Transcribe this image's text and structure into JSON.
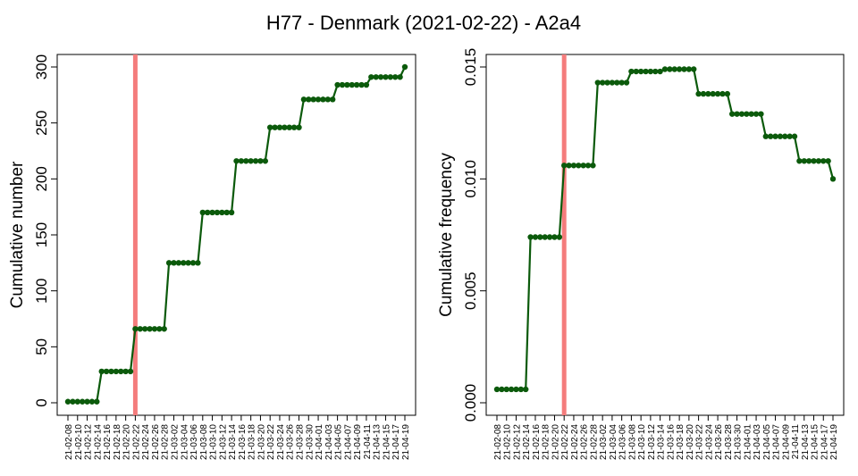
{
  "title": "H77 - Denmark (2021-02-22) - A2a4",
  "colors": {
    "line": "#0b5a0b",
    "marker": "#0b5a0b",
    "vline": "#f47c7c",
    "axis": "#000000"
  },
  "chart_data": [
    {
      "type": "line",
      "ylabel": "Cumulative number",
      "xlabel": "",
      "ylim": [
        0,
        300
      ],
      "yticks": [
        0,
        50,
        100,
        150,
        200,
        250,
        300
      ],
      "ytick_labels": [
        "0",
        "50",
        "100",
        "150",
        "200",
        "250",
        "300"
      ],
      "x": [
        "21-02-08",
        "21-02-09",
        "21-02-10",
        "21-02-11",
        "21-02-12",
        "21-02-13",
        "21-02-14",
        "21-02-15",
        "21-02-16",
        "21-02-17",
        "21-02-18",
        "21-02-19",
        "21-02-20",
        "21-02-21",
        "21-02-22",
        "21-02-23",
        "21-02-24",
        "21-02-25",
        "21-02-26",
        "21-02-27",
        "21-02-28",
        "21-03-01",
        "21-03-02",
        "21-03-03",
        "21-03-04",
        "21-03-05",
        "21-03-06",
        "21-03-07",
        "21-03-08",
        "21-03-09",
        "21-03-10",
        "21-03-11",
        "21-03-12",
        "21-03-13",
        "21-03-14",
        "21-03-15",
        "21-03-16",
        "21-03-17",
        "21-03-18",
        "21-03-19",
        "21-03-20",
        "21-03-21",
        "21-03-22",
        "21-03-23",
        "21-03-24",
        "21-03-25",
        "21-03-26",
        "21-03-27",
        "21-03-28",
        "21-03-29",
        "21-03-30",
        "21-03-31",
        "21-04-01",
        "21-04-02",
        "21-04-03",
        "21-04-04",
        "21-04-05",
        "21-04-06",
        "21-04-07",
        "21-04-08",
        "21-04-09",
        "21-04-10",
        "21-04-11",
        "21-04-12",
        "21-04-13",
        "21-04-14",
        "21-04-15",
        "21-04-16",
        "21-04-17",
        "21-04-18",
        "21-04-19"
      ],
      "xtick_labels": [
        "21-02-08",
        "21-02-10",
        "21-02-12",
        "21-02-14",
        "21-02-16",
        "21-02-18",
        "21-02-20",
        "21-02-22",
        "21-02-24",
        "21-02-26",
        "21-02-28",
        "21-03-02",
        "21-03-04",
        "21-03-06",
        "21-03-08",
        "21-03-10",
        "21-03-12",
        "21-03-14",
        "21-03-16",
        "21-03-18",
        "21-03-20",
        "21-03-22",
        "21-03-24",
        "21-03-26",
        "21-03-28",
        "21-03-30",
        "21-04-01",
        "21-04-03",
        "21-04-05",
        "21-04-07",
        "21-04-09",
        "21-04-11",
        "21-04-13",
        "21-04-15",
        "21-04-17",
        "21-04-19"
      ],
      "values": [
        1,
        1,
        1,
        1,
        1,
        1,
        1,
        28,
        28,
        28,
        28,
        28,
        28,
        28,
        66,
        66,
        66,
        66,
        66,
        66,
        66,
        125,
        125,
        125,
        125,
        125,
        125,
        125,
        170,
        170,
        170,
        170,
        170,
        170,
        170,
        216,
        216,
        216,
        216,
        216,
        216,
        216,
        246,
        246,
        246,
        246,
        246,
        246,
        246,
        271,
        271,
        271,
        271,
        271,
        271,
        271,
        284,
        284,
        284,
        284,
        284,
        284,
        284,
        291,
        291,
        291,
        291,
        291,
        291,
        291,
        300
      ],
      "vline": "21-02-22"
    },
    {
      "type": "line",
      "ylabel": "Cumulative frequency",
      "xlabel": "",
      "ylim": [
        0,
        0.015
      ],
      "yticks": [
        0,
        0.005,
        0.01,
        0.015
      ],
      "ytick_labels": [
        "0.000",
        "0.005",
        "0.010",
        "0.015"
      ],
      "x": [
        "21-02-08",
        "21-02-09",
        "21-02-10",
        "21-02-11",
        "21-02-12",
        "21-02-13",
        "21-02-14",
        "21-02-15",
        "21-02-16",
        "21-02-17",
        "21-02-18",
        "21-02-19",
        "21-02-20",
        "21-02-21",
        "21-02-22",
        "21-02-23",
        "21-02-24",
        "21-02-25",
        "21-02-26",
        "21-02-27",
        "21-02-28",
        "21-03-01",
        "21-03-02",
        "21-03-03",
        "21-03-04",
        "21-03-05",
        "21-03-06",
        "21-03-07",
        "21-03-08",
        "21-03-09",
        "21-03-10",
        "21-03-11",
        "21-03-12",
        "21-03-13",
        "21-03-14",
        "21-03-15",
        "21-03-16",
        "21-03-17",
        "21-03-18",
        "21-03-19",
        "21-03-20",
        "21-03-21",
        "21-03-22",
        "21-03-23",
        "21-03-24",
        "21-03-25",
        "21-03-26",
        "21-03-27",
        "21-03-28",
        "21-03-29",
        "21-03-30",
        "21-03-31",
        "21-04-01",
        "21-04-02",
        "21-04-03",
        "21-04-04",
        "21-04-05",
        "21-04-06",
        "21-04-07",
        "21-04-08",
        "21-04-09",
        "21-04-10",
        "21-04-11",
        "21-04-12",
        "21-04-13",
        "21-04-14",
        "21-04-15",
        "21-04-16",
        "21-04-17",
        "21-04-18",
        "21-04-19"
      ],
      "xtick_labels": [
        "21-02-08",
        "21-02-10",
        "21-02-12",
        "21-02-14",
        "21-02-16",
        "21-02-18",
        "21-02-20",
        "21-02-22",
        "21-02-24",
        "21-02-26",
        "21-02-28",
        "21-03-02",
        "21-03-04",
        "21-03-06",
        "21-03-08",
        "21-03-10",
        "21-03-12",
        "21-03-14",
        "21-03-16",
        "21-03-18",
        "21-03-20",
        "21-03-22",
        "21-03-24",
        "21-03-26",
        "21-03-28",
        "21-03-30",
        "21-04-01",
        "21-04-03",
        "21-04-05",
        "21-04-07",
        "21-04-09",
        "21-04-11",
        "21-04-13",
        "21-04-15",
        "21-04-17",
        "21-04-19"
      ],
      "values": [
        0.0006,
        0.0006,
        0.0006,
        0.0006,
        0.0006,
        0.0006,
        0.0006,
        0.0074,
        0.0074,
        0.0074,
        0.0074,
        0.0074,
        0.0074,
        0.0074,
        0.0106,
        0.0106,
        0.0106,
        0.0106,
        0.0106,
        0.0106,
        0.0106,
        0.0143,
        0.0143,
        0.0143,
        0.0143,
        0.0143,
        0.0143,
        0.0143,
        0.0148,
        0.0148,
        0.0148,
        0.0148,
        0.0148,
        0.0148,
        0.0148,
        0.0149,
        0.0149,
        0.0149,
        0.0149,
        0.0149,
        0.0149,
        0.0149,
        0.0138,
        0.0138,
        0.0138,
        0.0138,
        0.0138,
        0.0138,
        0.0138,
        0.0129,
        0.0129,
        0.0129,
        0.0129,
        0.0129,
        0.0129,
        0.0129,
        0.0119,
        0.0119,
        0.0119,
        0.0119,
        0.0119,
        0.0119,
        0.0119,
        0.0108,
        0.0108,
        0.0108,
        0.0108,
        0.0108,
        0.0108,
        0.0108,
        0.01
      ],
      "vline": "21-02-22"
    }
  ]
}
